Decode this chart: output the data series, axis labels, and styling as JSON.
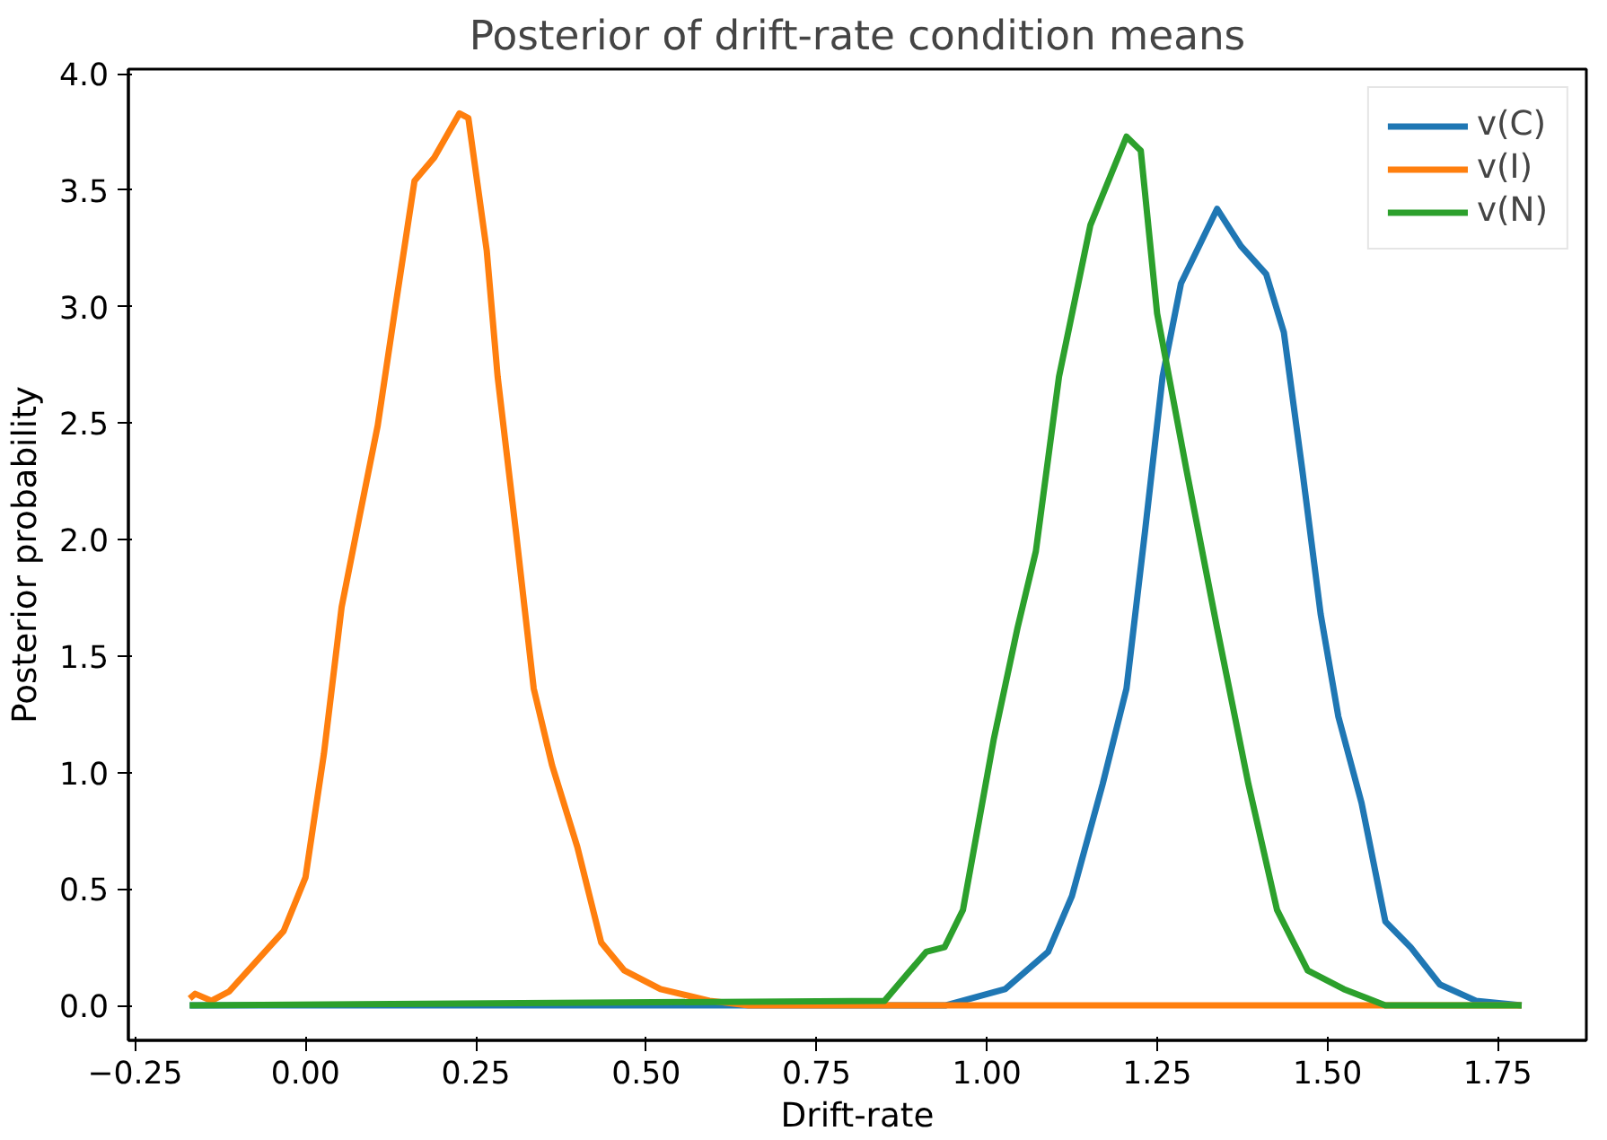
{
  "chart_data": {
    "type": "line",
    "title": "Posterior of drift-rate condition means",
    "xlabel": "Drift-rate",
    "ylabel": "Posterior probability",
    "xlim": [
      -0.26,
      1.88
    ],
    "ylim": [
      -0.15,
      4.02
    ],
    "xticks": [
      {
        "value": -0.25,
        "label": "−0.25"
      },
      {
        "value": 0,
        "label": "0.00"
      },
      {
        "value": 0.25,
        "label": "0.25"
      },
      {
        "value": 0.5,
        "label": "0.50"
      },
      {
        "value": 0.75,
        "label": "0.75"
      },
      {
        "value": 1,
        "label": "1.00"
      },
      {
        "value": 1.25,
        "label": "1.25"
      },
      {
        "value": 1.5,
        "label": "1.50"
      },
      {
        "value": 1.75,
        "label": "1.75"
      }
    ],
    "yticks": [
      {
        "value": 0,
        "label": "0.0"
      },
      {
        "value": 0.5,
        "label": "0.5"
      },
      {
        "value": 1,
        "label": "1.0"
      },
      {
        "value": 1.5,
        "label": "1.5"
      },
      {
        "value": 2,
        "label": "2.0"
      },
      {
        "value": 2.5,
        "label": "2.5"
      },
      {
        "value": 3,
        "label": "3.0"
      },
      {
        "value": 3.5,
        "label": "3.5"
      },
      {
        "value": 4,
        "label": "4.0"
      }
    ],
    "grid": false,
    "legend": "top right",
    "marker": "none",
    "line_style": "solid",
    "series": [
      {
        "name": "v(C)",
        "color": "#1f77b4",
        "x": [
          -0.17,
          0.939,
          1.027,
          1.09,
          1.125,
          1.17,
          1.205,
          1.232,
          1.258,
          1.285,
          1.338,
          1.373,
          1.41,
          1.436,
          1.463,
          1.49,
          1.516,
          1.55,
          1.585,
          1.622,
          1.665,
          1.718,
          1.785
        ],
        "values": [
          0,
          0,
          0.07,
          0.23,
          0.47,
          0.95,
          1.36,
          2.03,
          2.7,
          3.1,
          3.42,
          3.26,
          3.14,
          2.89,
          2.3,
          1.68,
          1.24,
          0.87,
          0.36,
          0.25,
          0.09,
          0.02,
          0
        ]
      },
      {
        "name": "v(I)",
        "color": "#ff7f0e",
        "x": [
          -0.17,
          -0.162,
          -0.138,
          -0.112,
          -0.032,
          0.0,
          0.027,
          0.053,
          0.08,
          0.106,
          0.133,
          0.16,
          0.189,
          0.226,
          0.239,
          0.266,
          0.282,
          0.309,
          0.335,
          0.362,
          0.399,
          0.434,
          0.468,
          0.521,
          0.593,
          0.65,
          1.785
        ],
        "values": [
          0.03,
          0.05,
          0.02,
          0.06,
          0.32,
          0.55,
          1.08,
          1.71,
          2.11,
          2.49,
          3.02,
          3.54,
          3.64,
          3.83,
          3.81,
          3.24,
          2.7,
          2.03,
          1.36,
          1.03,
          0.68,
          0.27,
          0.15,
          0.07,
          0.02,
          0,
          0
        ]
      },
      {
        "name": "v(N)",
        "color": "#2ca02c",
        "x": [
          -0.17,
          0.85,
          0.911,
          0.938,
          0.965,
          1.01,
          1.045,
          1.072,
          1.106,
          1.152,
          1.205,
          1.226,
          1.25,
          1.293,
          1.338,
          1.384,
          1.426,
          1.471,
          1.524,
          1.585,
          1.785
        ],
        "values": [
          0,
          0.02,
          0.23,
          0.25,
          0.41,
          1.14,
          1.62,
          1.95,
          2.7,
          3.35,
          3.73,
          3.67,
          2.97,
          2.3,
          1.62,
          0.95,
          0.41,
          0.15,
          0.07,
          0,
          0
        ]
      }
    ]
  }
}
